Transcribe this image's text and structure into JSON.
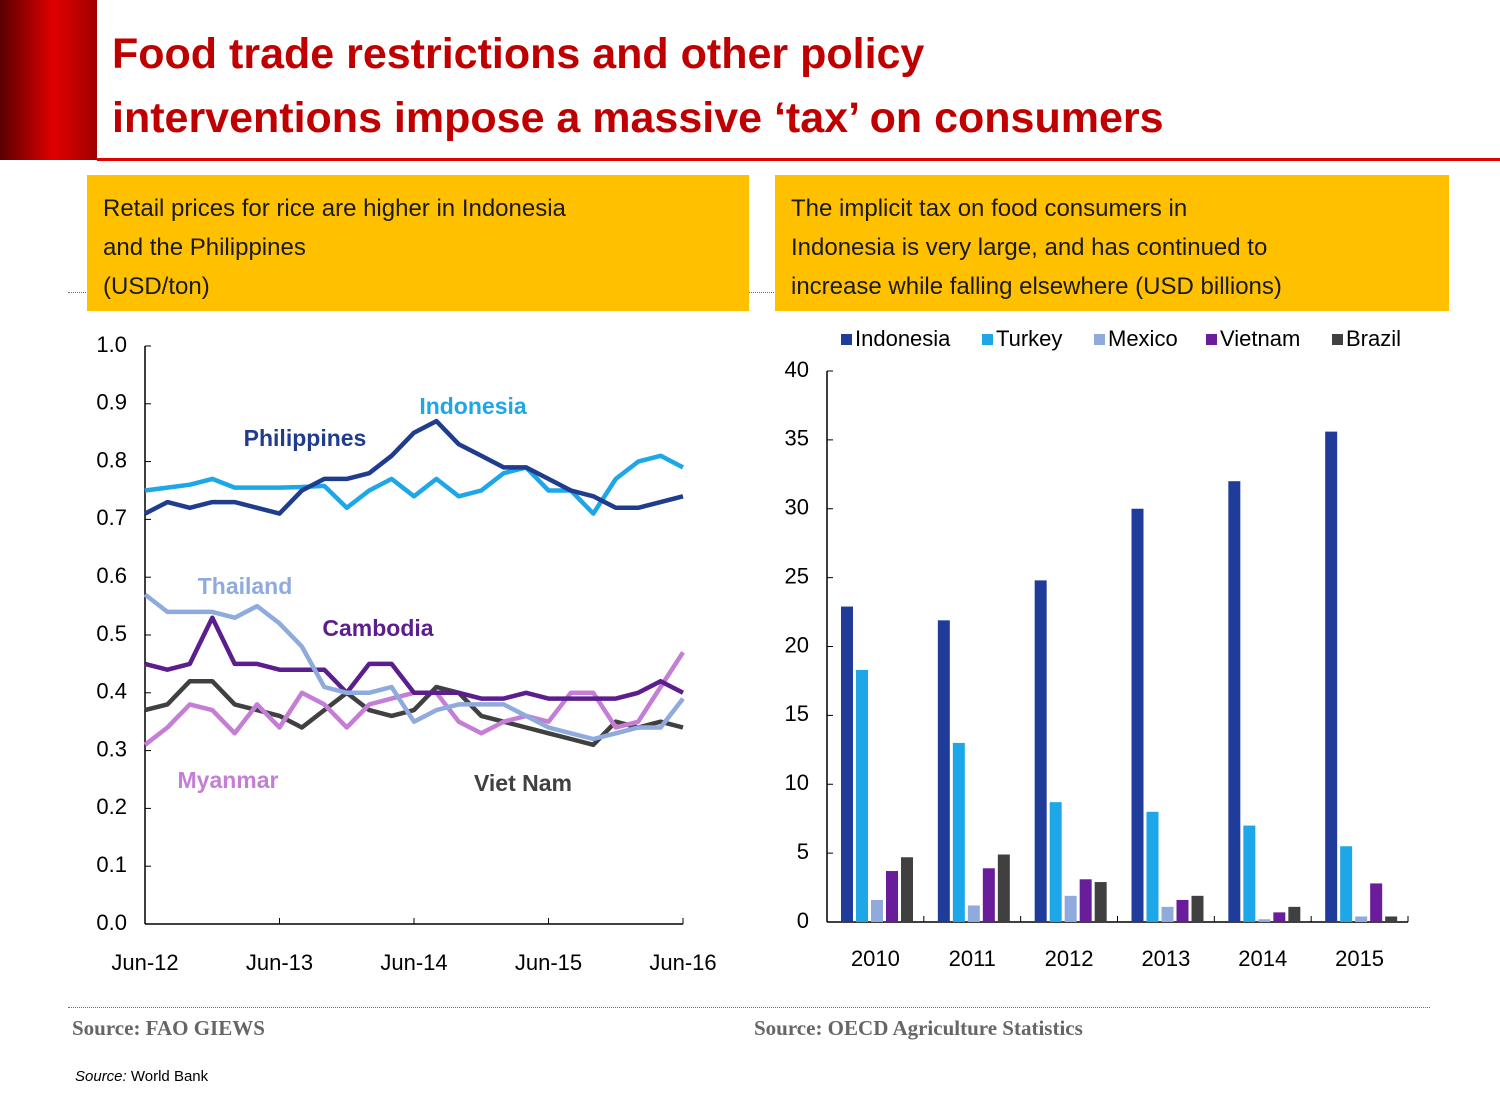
{
  "title": [
    "Food trade restrictions and other policy",
    "interventions impose a massive ‘tax’ on consumers"
  ],
  "chart_data": [
    {
      "type": "line",
      "title": [
        "Retail prices for rice are higher in Indonesia",
        "and the Philippines",
        "(USD/ton)"
      ],
      "categories": [
        "Jun-12",
        null,
        null,
        null,
        null,
        null,
        "Jun-13",
        null,
        null,
        null,
        null,
        null,
        "Jun-14",
        null,
        null,
        null,
        null,
        null,
        "Jun-15",
        null,
        null,
        null,
        null,
        null,
        "Jun-16"
      ],
      "ylim": [
        0,
        1
      ],
      "yticks": [
        {
          "value": 0,
          "label": "0.0"
        },
        0.1,
        0.2,
        0.3,
        0.4,
        0.5,
        0.6,
        0.7,
        0.8,
        0.9,
        {
          "value": 1,
          "label": "1.0"
        }
      ],
      "series": [
        {
          "name": "Philippines",
          "color": "#1f3c8f",
          "values": [
            0.71,
            0.73,
            0.72,
            0.73,
            0.73,
            0.72,
            0.71,
            0.75,
            0.77,
            0.77,
            0.78,
            0.81,
            0.85,
            0.87,
            0.83,
            0.81,
            0.79,
            0.79,
            0.77,
            0.75,
            0.74,
            0.72,
            0.72,
            0.73,
            0.74
          ]
        },
        {
          "name": "Indonesia",
          "color": "#1ea7e8",
          "values": [
            0.75,
            0.755,
            0.76,
            0.77,
            0.755,
            0.755,
            0.755,
            0.756,
            0.758,
            0.72,
            0.75,
            0.77,
            0.74,
            0.77,
            0.74,
            0.75,
            0.78,
            0.79,
            0.75,
            0.75,
            0.71,
            0.77,
            0.8,
            0.81,
            0.79
          ]
        },
        {
          "name": "Thailand",
          "color": "#8faadc",
          "values": [
            0.57,
            0.54,
            0.54,
            0.54,
            0.53,
            0.55,
            0.52,
            0.48,
            0.41,
            0.4,
            0.4,
            0.41,
            0.35,
            0.37,
            0.38,
            0.38,
            0.38,
            0.36,
            0.34,
            0.33,
            0.32,
            0.33,
            0.34,
            0.34,
            0.39
          ]
        },
        {
          "name": "Cambodia",
          "color": "#5c1e8c",
          "values": [
            0.45,
            0.44,
            0.45,
            0.53,
            0.45,
            0.45,
            0.44,
            0.44,
            0.44,
            0.4,
            0.45,
            0.45,
            0.4,
            0.4,
            0.4,
            0.39,
            0.39,
            0.4,
            0.39,
            0.39,
            0.39,
            0.39,
            0.4,
            0.42,
            0.4
          ]
        },
        {
          "name": "Myanmar",
          "color": "#c57ed6",
          "values": [
            0.31,
            0.34,
            0.38,
            0.37,
            0.33,
            0.38,
            0.34,
            0.4,
            0.38,
            0.34,
            0.38,
            0.39,
            0.4,
            0.4,
            0.35,
            0.33,
            0.35,
            0.36,
            0.35,
            0.4,
            0.4,
            0.34,
            0.35,
            0.41,
            0.47
          ]
        },
        {
          "name": "Viet Nam",
          "color": "#404040",
          "values": [
            0.37,
            0.38,
            0.42,
            0.42,
            0.38,
            0.37,
            0.36,
            0.34,
            0.37,
            0.4,
            0.37,
            0.36,
            0.37,
            0.41,
            0.4,
            0.36,
            0.35,
            0.34,
            0.33,
            0.32,
            0.31,
            0.35,
            0.34,
            0.35,
            0.34
          ]
        }
      ],
      "source": "Source: FAO GIEWS"
    },
    {
      "type": "bar",
      "title": [
        "The implicit tax on food consumers in",
        "Indonesia is very large, and has continued to",
        "increase while falling elsewhere (USD billions)"
      ],
      "categories": [
        "2010",
        "2011",
        "2012",
        "2013",
        "2014",
        "2015"
      ],
      "ylim": [
        0,
        40
      ],
      "yticks": [
        0,
        5,
        10,
        15,
        20,
        25,
        30,
        35,
        40
      ],
      "legend": "top",
      "series": [
        {
          "name": "Indonesia",
          "color": "#1f3c9a",
          "values": [
            22.9,
            21.9,
            24.8,
            30,
            32,
            35.6
          ]
        },
        {
          "name": "Turkey",
          "color": "#1ea7e8",
          "values": [
            18.3,
            13,
            8.7,
            8,
            7,
            5.5
          ]
        },
        {
          "name": "Mexico",
          "color": "#8faadc",
          "values": [
            1.6,
            1.2,
            1.9,
            1.1,
            0.2,
            0.4
          ]
        },
        {
          "name": "Vietnam",
          "color": "#6a1d9a",
          "values": [
            3.7,
            3.9,
            3.1,
            1.6,
            0.7,
            2.8
          ]
        },
        {
          "name": "Brazil",
          "color": "#404040",
          "values": [
            4.7,
            4.9,
            2.9,
            1.9,
            1.1,
            0.4
          ]
        }
      ],
      "source": "Source: OECD Agriculture Statistics"
    }
  ],
  "footnote": {
    "label": "Source:",
    "text": "World Bank"
  }
}
